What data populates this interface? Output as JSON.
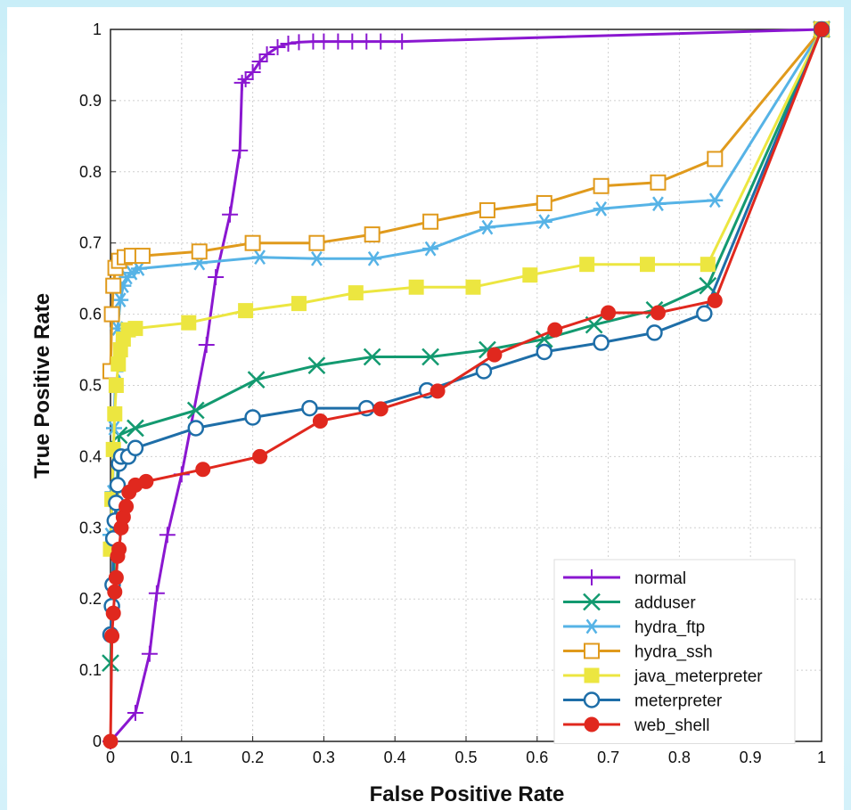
{
  "chart_data": {
    "type": "line",
    "title": "",
    "xlabel": "False Positive Rate",
    "ylabel": "True Positive Rate",
    "xlim": [
      0,
      1
    ],
    "ylim": [
      0,
      1
    ],
    "xticks": [
      "0",
      "0.1",
      "0.2",
      "0.3",
      "0.4",
      "0.5",
      "0.6",
      "0.7",
      "0.8",
      "0.9",
      "1"
    ],
    "yticks": [
      "0",
      "0.1",
      "0.2",
      "0.3",
      "0.4",
      "0.5",
      "0.6",
      "0.7",
      "0.8",
      "0.9",
      "1"
    ],
    "grid": true,
    "legend_position": "bottom-right",
    "series": [
      {
        "name": "normal",
        "color": "#8a17d0",
        "marker": "plus",
        "points": [
          [
            0,
            0
          ],
          [
            0.035,
            0.04
          ],
          [
            0.055,
            0.123
          ],
          [
            0.065,
            0.208
          ],
          [
            0.08,
            0.29
          ],
          [
            0.1,
            0.375
          ],
          [
            0.135,
            0.557
          ],
          [
            0.148,
            0.652
          ],
          [
            0.168,
            0.74
          ],
          [
            0.182,
            0.83
          ],
          [
            0.185,
            0.925
          ],
          [
            0.19,
            0.93
          ],
          [
            0.2,
            0.94
          ],
          [
            0.21,
            0.955
          ],
          [
            0.22,
            0.965
          ],
          [
            0.235,
            0.975
          ],
          [
            0.25,
            0.98
          ],
          [
            0.265,
            0.982
          ],
          [
            0.285,
            0.983
          ],
          [
            0.3,
            0.983
          ],
          [
            0.32,
            0.983
          ],
          [
            0.34,
            0.983
          ],
          [
            0.36,
            0.983
          ],
          [
            0.38,
            0.983
          ],
          [
            0.41,
            0.983
          ],
          [
            1,
            1
          ]
        ]
      },
      {
        "name": "adduser",
        "color": "#139a70",
        "marker": "x",
        "points": [
          [
            0,
            0.11
          ],
          [
            0.012,
            0.43
          ],
          [
            0.035,
            0.44
          ],
          [
            0.12,
            0.465
          ],
          [
            0.205,
            0.508
          ],
          [
            0.29,
            0.528
          ],
          [
            0.368,
            0.54
          ],
          [
            0.45,
            0.54
          ],
          [
            0.53,
            0.55
          ],
          [
            0.61,
            0.565
          ],
          [
            0.68,
            0.585
          ],
          [
            0.765,
            0.606
          ],
          [
            0.84,
            0.64
          ],
          [
            1,
            1
          ]
        ]
      },
      {
        "name": "hydra_ftp",
        "color": "#56b3e6",
        "marker": "star",
        "points": [
          [
            0,
            0.29
          ],
          [
            0.003,
            0.35
          ],
          [
            0.005,
            0.44
          ],
          [
            0.007,
            0.52
          ],
          [
            0.01,
            0.58
          ],
          [
            0.014,
            0.62
          ],
          [
            0.018,
            0.64
          ],
          [
            0.023,
            0.652
          ],
          [
            0.03,
            0.658
          ],
          [
            0.04,
            0.664
          ],
          [
            0.125,
            0.672
          ],
          [
            0.21,
            0.68
          ],
          [
            0.29,
            0.678
          ],
          [
            0.37,
            0.678
          ],
          [
            0.45,
            0.692
          ],
          [
            0.53,
            0.722
          ],
          [
            0.61,
            0.73
          ],
          [
            0.69,
            0.748
          ],
          [
            0.77,
            0.755
          ],
          [
            0.85,
            0.76
          ],
          [
            1,
            1
          ]
        ]
      },
      {
        "name": "hydra_ssh",
        "color": "#e09a1c",
        "marker": "square-open",
        "points": [
          [
            0,
            0.52
          ],
          [
            0.002,
            0.6
          ],
          [
            0.004,
            0.64
          ],
          [
            0.007,
            0.665
          ],
          [
            0.012,
            0.675
          ],
          [
            0.02,
            0.68
          ],
          [
            0.03,
            0.682
          ],
          [
            0.045,
            0.682
          ],
          [
            0.125,
            0.688
          ],
          [
            0.2,
            0.7
          ],
          [
            0.29,
            0.7
          ],
          [
            0.368,
            0.712
          ],
          [
            0.45,
            0.73
          ],
          [
            0.53,
            0.746
          ],
          [
            0.61,
            0.756
          ],
          [
            0.69,
            0.78
          ],
          [
            0.77,
            0.785
          ],
          [
            0.85,
            0.818
          ],
          [
            1,
            1
          ]
        ]
      },
      {
        "name": "java_meterpreter",
        "color": "#ece640",
        "marker": "square",
        "points": [
          [
            0,
            0.27
          ],
          [
            0.002,
            0.34
          ],
          [
            0.004,
            0.41
          ],
          [
            0.006,
            0.46
          ],
          [
            0.008,
            0.5
          ],
          [
            0.011,
            0.53
          ],
          [
            0.014,
            0.55
          ],
          [
            0.018,
            0.565
          ],
          [
            0.025,
            0.578
          ],
          [
            0.035,
            0.58
          ],
          [
            0.11,
            0.588
          ],
          [
            0.19,
            0.605
          ],
          [
            0.265,
            0.615
          ],
          [
            0.345,
            0.63
          ],
          [
            0.43,
            0.638
          ],
          [
            0.51,
            0.638
          ],
          [
            0.59,
            0.655
          ],
          [
            0.67,
            0.67
          ],
          [
            0.755,
            0.67
          ],
          [
            0.84,
            0.67
          ],
          [
            1,
            1
          ]
        ]
      },
      {
        "name": "meterpreter",
        "color": "#1e6ea8",
        "marker": "circle-open",
        "points": [
          [
            0,
            0.15
          ],
          [
            0.002,
            0.19
          ],
          [
            0.003,
            0.22
          ],
          [
            0.004,
            0.285
          ],
          [
            0.006,
            0.31
          ],
          [
            0.008,
            0.335
          ],
          [
            0.01,
            0.36
          ],
          [
            0.012,
            0.39
          ],
          [
            0.015,
            0.4
          ],
          [
            0.025,
            0.4
          ],
          [
            0.035,
            0.412
          ],
          [
            0.12,
            0.44
          ],
          [
            0.2,
            0.455
          ],
          [
            0.28,
            0.468
          ],
          [
            0.36,
            0.468
          ],
          [
            0.445,
            0.493
          ],
          [
            0.525,
            0.52
          ],
          [
            0.61,
            0.547
          ],
          [
            0.69,
            0.56
          ],
          [
            0.765,
            0.574
          ],
          [
            0.835,
            0.601
          ],
          [
            1,
            1
          ]
        ]
      },
      {
        "name": "web_shell",
        "color": "#e0281e",
        "marker": "circle",
        "points": [
          [
            0,
            0
          ],
          [
            0.002,
            0.148
          ],
          [
            0.004,
            0.18
          ],
          [
            0.006,
            0.21
          ],
          [
            0.008,
            0.23
          ],
          [
            0.01,
            0.26
          ],
          [
            0.012,
            0.27
          ],
          [
            0.015,
            0.3
          ],
          [
            0.018,
            0.315
          ],
          [
            0.022,
            0.33
          ],
          [
            0.026,
            0.35
          ],
          [
            0.035,
            0.36
          ],
          [
            0.05,
            0.365
          ],
          [
            0.13,
            0.382
          ],
          [
            0.21,
            0.4
          ],
          [
            0.295,
            0.45
          ],
          [
            0.38,
            0.467
          ],
          [
            0.46,
            0.492
          ],
          [
            0.54,
            0.543
          ],
          [
            0.625,
            0.578
          ],
          [
            0.7,
            0.602
          ],
          [
            0.77,
            0.602
          ],
          [
            0.85,
            0.619
          ],
          [
            1,
            1
          ]
        ]
      }
    ]
  }
}
